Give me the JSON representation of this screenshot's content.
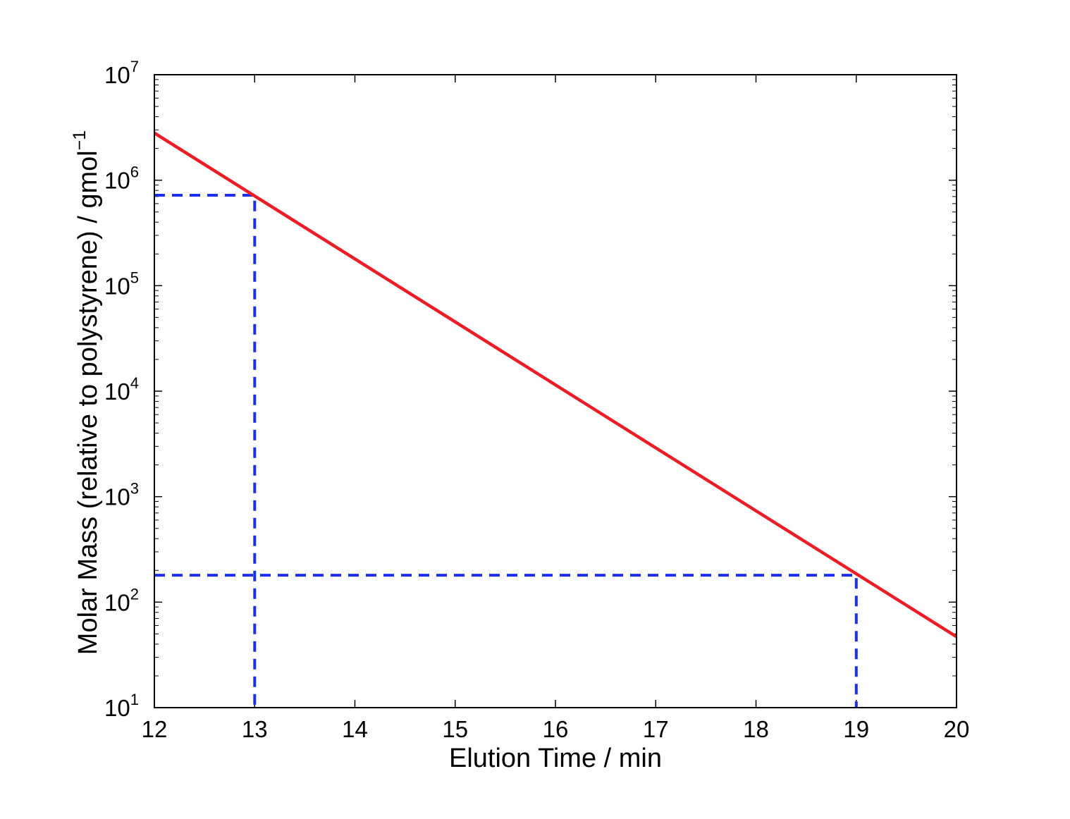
{
  "chart_data": {
    "type": "line",
    "title": "",
    "xlabel": "Elution Time / min",
    "ylabel": "Molar Mass (relative to polystyrene) / gmol",
    "ylabel_superscript": "−1",
    "xscale": "linear",
    "yscale": "log",
    "xlim": [
      12,
      20
    ],
    "ylim": [
      10,
      10000000
    ],
    "xticks": [
      "12",
      "13",
      "14",
      "15",
      "16",
      "17",
      "18",
      "19",
      "20"
    ],
    "yticks": [
      {
        "base": "10",
        "exp": "1"
      },
      {
        "base": "10",
        "exp": "2"
      },
      {
        "base": "10",
        "exp": "3"
      },
      {
        "base": "10",
        "exp": "4"
      },
      {
        "base": "10",
        "exp": "5"
      },
      {
        "base": "10",
        "exp": "6"
      },
      {
        "base": "10",
        "exp": "7"
      }
    ],
    "grid": false,
    "legend": "none",
    "series": [
      {
        "style": "solid",
        "color": "#ee1c25",
        "x": [
          12,
          20
        ],
        "y": [
          2800000,
          47
        ]
      }
    ],
    "guides": [
      {
        "style": "dashed",
        "color": "#1a2ff0",
        "x": [
          12,
          13,
          13
        ],
        "y": [
          720000,
          720000,
          10
        ]
      },
      {
        "style": "dashed",
        "color": "#1a2ff0",
        "x": [
          12,
          19,
          19
        ],
        "y": [
          180,
          180,
          10
        ]
      }
    ]
  }
}
